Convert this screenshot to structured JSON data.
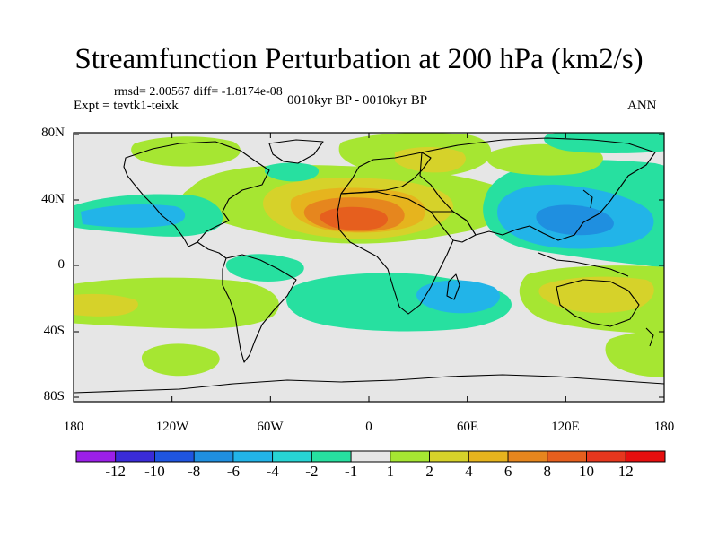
{
  "title": "Streamfunction Perturbation at 200 hPa (km2/s)",
  "stats": "rmsd= 2.00567 diff= -1.8174e-08",
  "experiment": "Expt = tevtk1-teixk",
  "period": "0010kyr BP - 0010kyr BP",
  "season": "ANN",
  "lat_labels": [
    "80N",
    "40N",
    "0",
    "40S",
    "80S"
  ],
  "lon_labels": [
    "180",
    "120W",
    "60W",
    "0",
    "60E",
    "120E",
    "180"
  ],
  "colorbar": {
    "labels": [
      "-12",
      "-10",
      "-8",
      "-6",
      "-4",
      "-2",
      "-1",
      "1",
      "2",
      "4",
      "6",
      "8",
      "10",
      "12"
    ],
    "colors": [
      "#9b1fe8",
      "#3a2bd8",
      "#1f55e0",
      "#1f8fe0",
      "#22b4e8",
      "#27d4d4",
      "#27e0a0",
      "#e6e6e6",
      "#a6e632",
      "#d6d22a",
      "#e6b41e",
      "#e6861e",
      "#e65f1e",
      "#e6371e",
      "#e60f0f"
    ]
  },
  "map": {
    "projection": "cylindrical-equidistant",
    "lon_range": [
      -180,
      180
    ],
    "lat_range": [
      -90,
      90
    ],
    "background_color": "#e6e6e6"
  }
}
